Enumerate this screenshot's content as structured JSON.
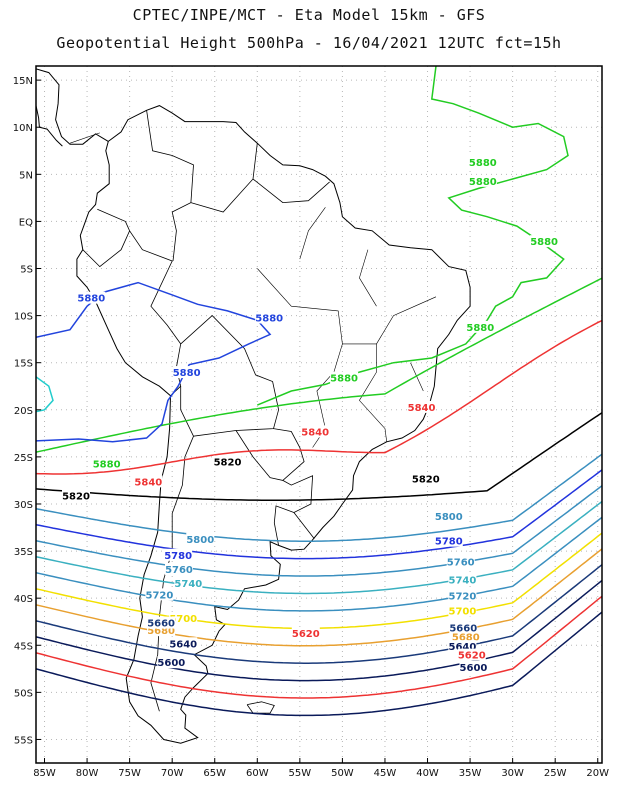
{
  "header": {
    "line1": "CPTEC/INPE/MCT -  Eta Model 15km - GFS",
    "line2": "Geopotential Height 500hPa - 16/04/2021 12UTC fct=15h"
  },
  "axes": {
    "lat_labels": [
      "15N",
      "10N",
      "5N",
      "EQ",
      "5S",
      "10S",
      "15S",
      "20S",
      "25S",
      "30S",
      "35S",
      "40S",
      "45S",
      "50S",
      "55S"
    ],
    "lat_values": [
      15,
      10,
      5,
      0,
      -5,
      -10,
      -15,
      -20,
      -25,
      -30,
      -35,
      -40,
      -45,
      -50,
      -55
    ],
    "lon_labels": [
      "85W",
      "80W",
      "75W",
      "70W",
      "65W",
      "60W",
      "55W",
      "50W",
      "45W",
      "40W",
      "35W",
      "30W",
      "25W",
      "20W"
    ],
    "lon_values": [
      -85,
      -80,
      -75,
      -70,
      -65,
      -60,
      -55,
      -50,
      -45,
      -40,
      -35,
      -30,
      -25,
      -20
    ],
    "lon_range": [
      -86,
      -19.5
    ],
    "lat_range": [
      -57.5,
      16.5
    ],
    "grid": "dotted"
  },
  "contours": [
    {
      "value": "5880",
      "color": "#22cc22",
      "labels": [
        [
          -33.5,
          6.2
        ],
        [
          -33.5,
          4.2
        ],
        [
          -26.3,
          -2.2
        ],
        [
          -33.8,
          -11.3
        ],
        [
          -49.8,
          -16.7
        ],
        [
          -77.7,
          -25.8
        ]
      ]
    },
    {
      "value": "5880",
      "color": "#2244dd",
      "labels": [
        [
          -79.5,
          -8.2
        ],
        [
          -58.6,
          -10.3
        ],
        [
          -68.3,
          -16.1
        ]
      ]
    },
    {
      "value": "5840",
      "color": "#ee3333",
      "labels": [
        [
          -40.7,
          -19.8
        ],
        [
          -53.2,
          -22.4
        ],
        [
          -72.8,
          -27.7
        ]
      ]
    },
    {
      "value": "5820",
      "color": "#000000",
      "labels": [
        [
          -63.5,
          -25.6
        ],
        [
          -40.2,
          -27.4
        ],
        [
          -81.3,
          -29.2
        ]
      ]
    },
    {
      "value": "5800",
      "color": "#3a8fbf",
      "labels": [
        [
          -37.5,
          -31.4
        ],
        [
          -66.7,
          -33.8
        ]
      ]
    },
    {
      "value": "5780",
      "color": "#2233dd",
      "labels": [
        [
          -69.3,
          -35.5
        ],
        [
          -37.5,
          -34.0
        ]
      ]
    },
    {
      "value": "5760",
      "color": "#3a8fbf",
      "labels": [
        [
          -36.1,
          -36.2
        ],
        [
          -69.2,
          -37.0
        ]
      ]
    },
    {
      "value": "5740",
      "color": "#3ab0c0",
      "labels": [
        [
          -35.9,
          -38.1
        ],
        [
          -68.1,
          -38.5
        ]
      ]
    },
    {
      "value": "5720",
      "color": "#3a8fbf",
      "labels": [
        [
          -35.9,
          -39.8
        ],
        [
          -71.5,
          -39.7
        ]
      ]
    },
    {
      "value": "5700",
      "color": "#f2e000",
      "labels": [
        [
          -35.9,
          -41.4
        ],
        [
          -68.7,
          -42.2
        ]
      ]
    },
    {
      "value": "5680",
      "color": "#e8a030",
      "labels": [
        [
          -35.5,
          -44.2
        ],
        [
          -71.3,
          -43.5
        ]
      ]
    },
    {
      "value": "5660",
      "color": "#1a3a7a",
      "labels": [
        [
          -35.8,
          -43.2
        ],
        [
          -71.3,
          -42.7
        ]
      ]
    },
    {
      "value": "5640",
      "color": "#0a1a5a",
      "labels": [
        [
          -35.9,
          -45.2
        ],
        [
          -68.7,
          -44.9
        ]
      ]
    },
    {
      "value": "5620",
      "color": "#ee3333",
      "labels": [
        [
          -34.8,
          -46.1
        ],
        [
          -54.3,
          -43.8
        ]
      ]
    },
    {
      "value": "5600",
      "color": "#0a1a5a",
      "labels": [
        [
          -34.6,
          -47.4
        ],
        [
          -70.1,
          -46.9
        ]
      ]
    }
  ],
  "colors": {
    "land_border": "#000000",
    "grid": "#b8b8b8",
    "frame": "#000000",
    "small_contour": "#22cccc"
  }
}
